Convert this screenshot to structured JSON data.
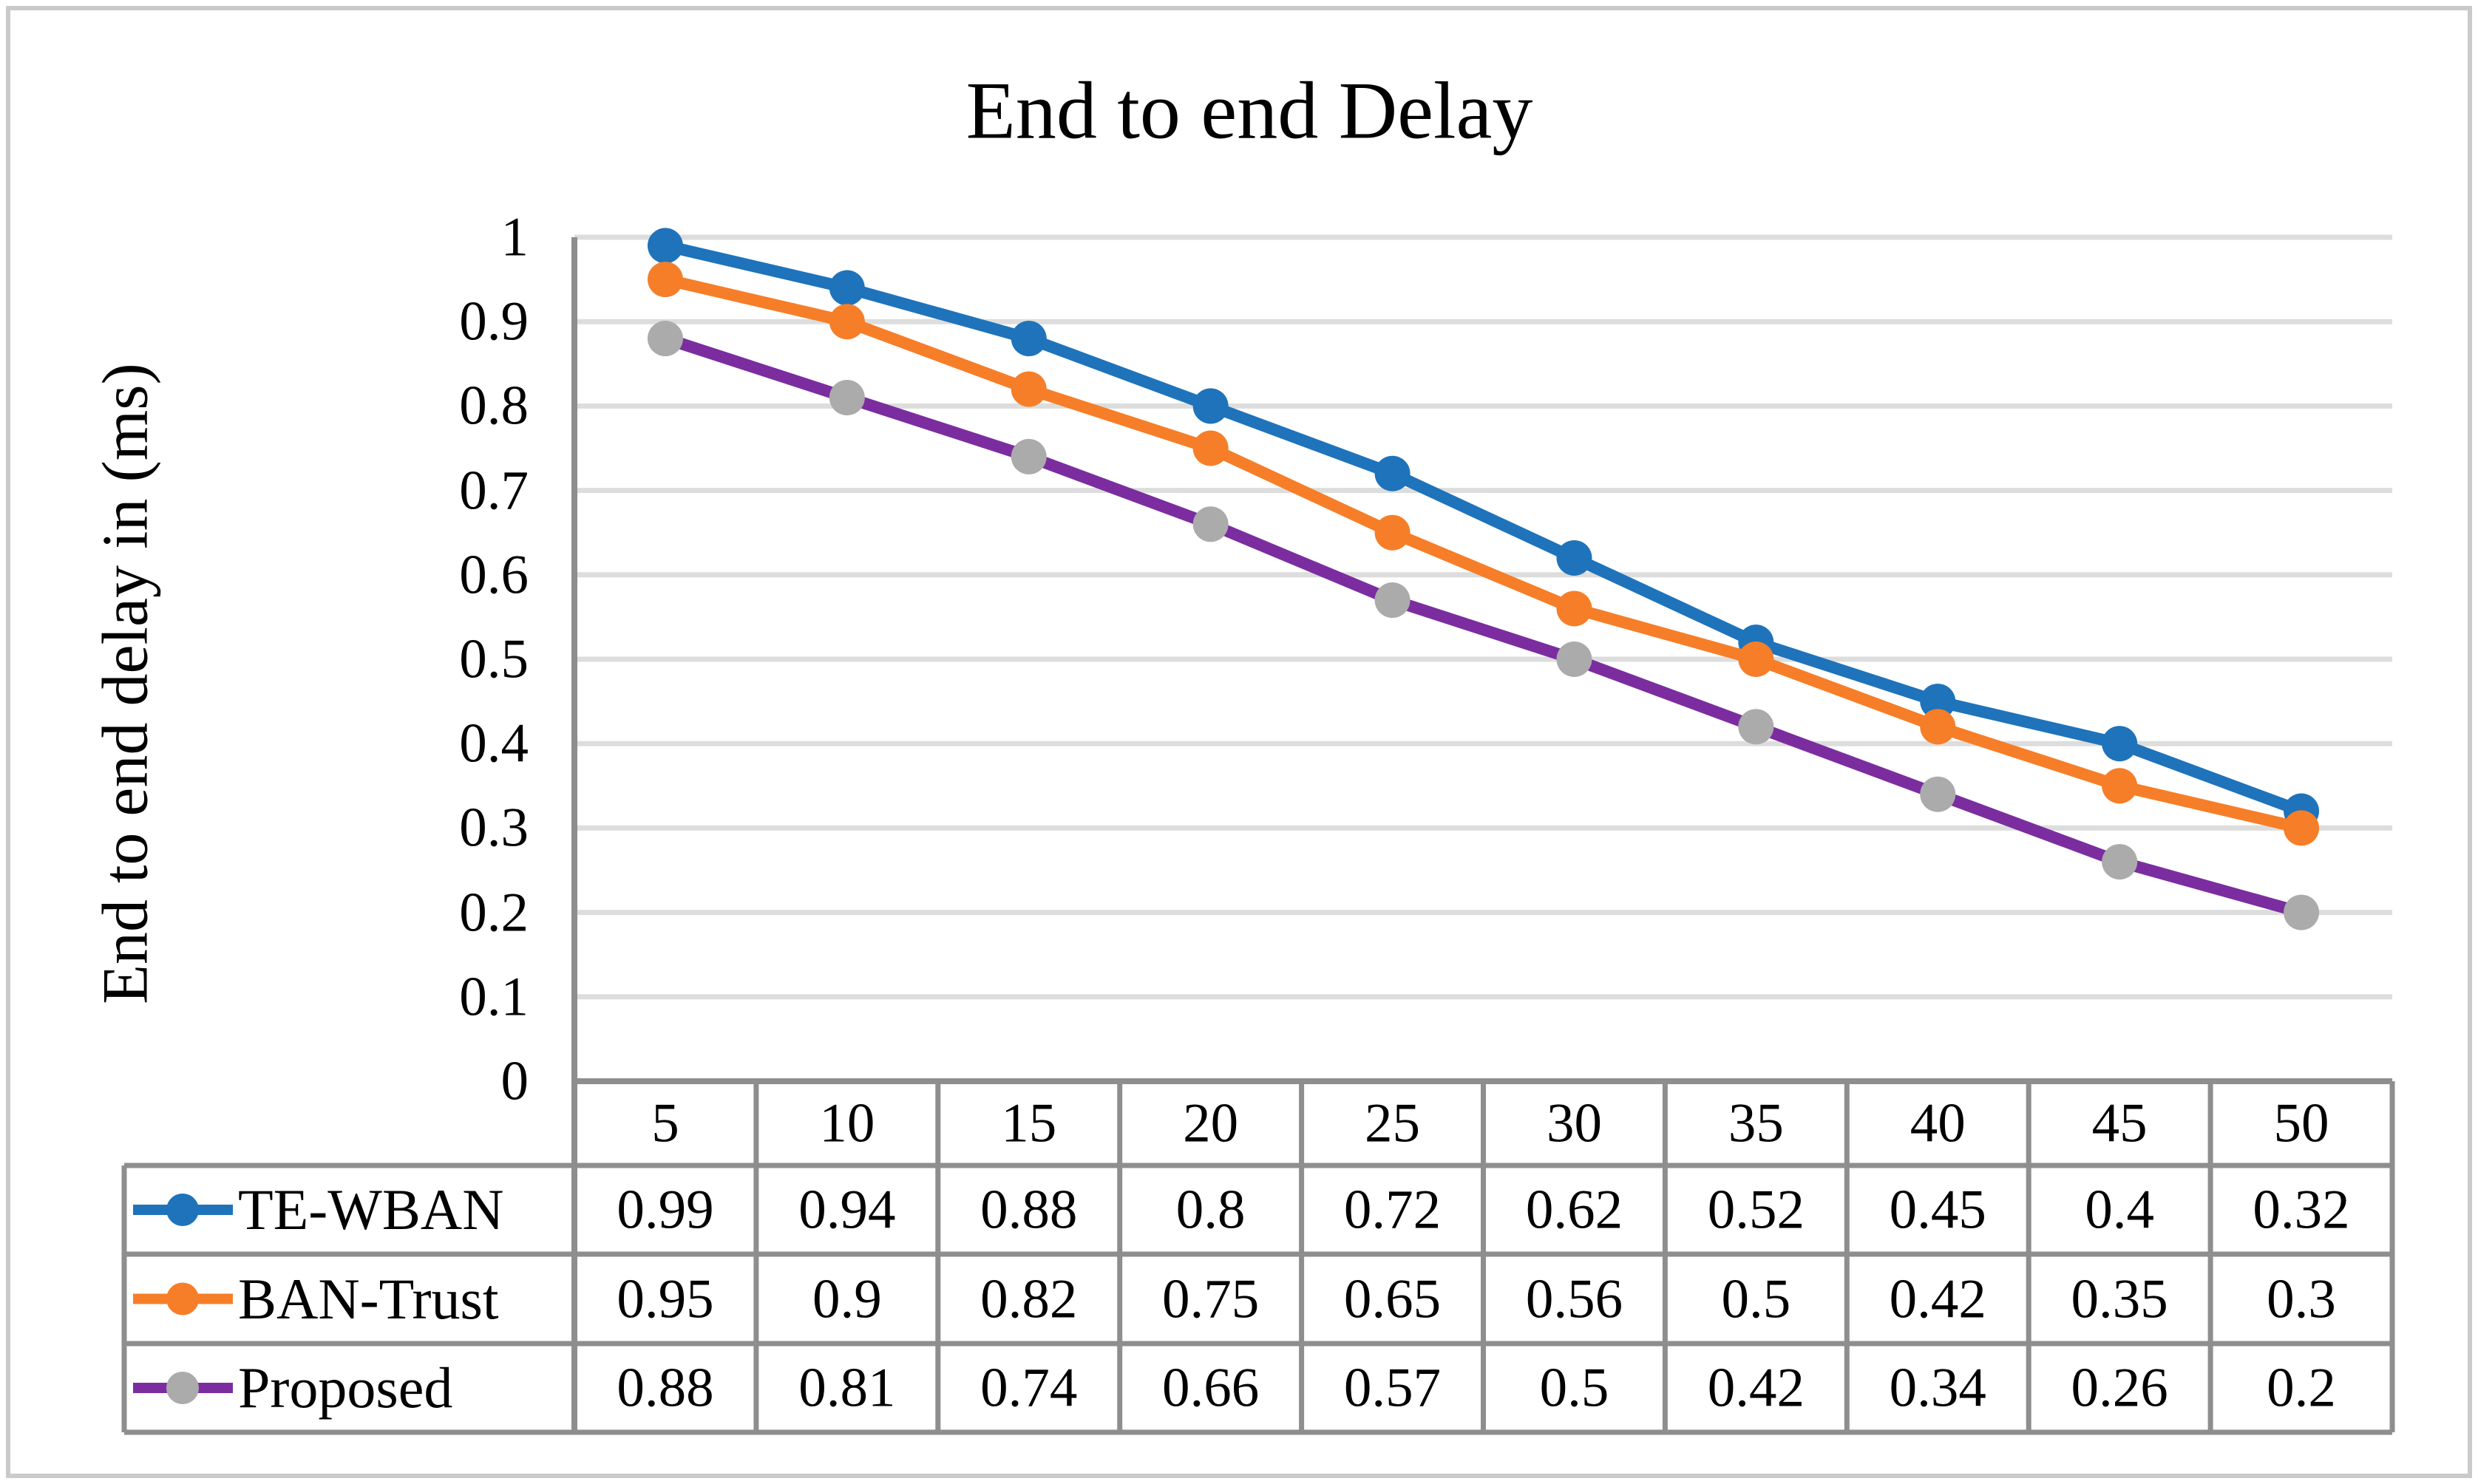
{
  "frame": {
    "border_color": "#CACACA",
    "background": "#FFFFFF"
  },
  "chart_data": {
    "type": "line",
    "title": "End to end Delay",
    "ylabel": "End to end delay in (ms)",
    "xlabel": "",
    "categories": [
      "5",
      "10",
      "15",
      "20",
      "25",
      "30",
      "35",
      "40",
      "45",
      "50"
    ],
    "series": [
      {
        "name": "TE-WBAN",
        "line_color": "#1E73BB",
        "marker_color": "#1E73BB",
        "values": [
          0.99,
          0.94,
          0.88,
          0.8,
          0.72,
          0.62,
          0.52,
          0.45,
          0.4,
          0.32
        ]
      },
      {
        "name": "BAN-Trust",
        "line_color": "#F67E28",
        "marker_color": "#F67E28",
        "values": [
          0.95,
          0.9,
          0.82,
          0.75,
          0.65,
          0.56,
          0.5,
          0.42,
          0.35,
          0.3
        ]
      },
      {
        "name": "Proposed",
        "line_color": "#7B2DA0",
        "marker_color": "#ABABAB",
        "values": [
          0.88,
          0.81,
          0.74,
          0.66,
          0.57,
          0.5,
          0.42,
          0.34,
          0.26,
          0.2
        ]
      }
    ],
    "ylim": [
      0,
      1
    ],
    "ytick_labels": [
      "0",
      "0.1",
      "0.2",
      "0.3",
      "0.4",
      "0.5",
      "0.6",
      "0.7",
      "0.8",
      "0.9",
      "1"
    ],
    "grid": true,
    "gridline_color": "#DDDDDD",
    "axis_color": "#8E8E8E",
    "legend_position": "left-of-data-table",
    "marker": "circle"
  }
}
